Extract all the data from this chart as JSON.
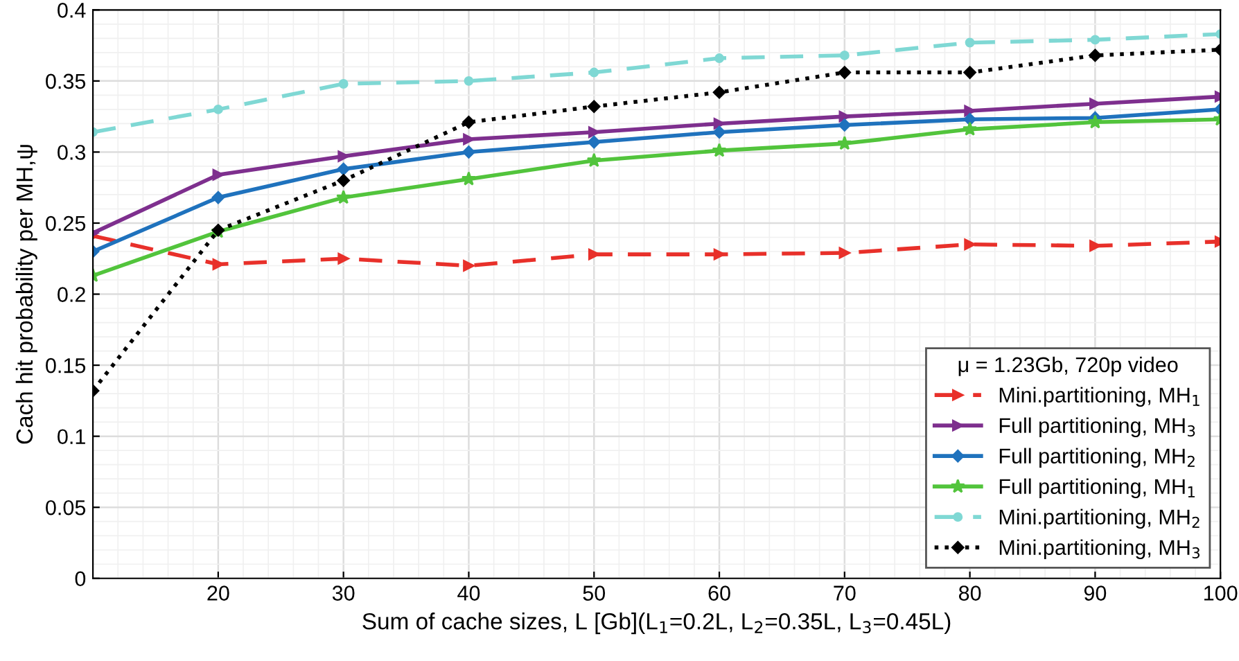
{
  "chart_data": {
    "type": "line",
    "xlabel": "Sum of cache sizes, L [Gb](L$_{1}$=0.2L, L$_{2}$=0.35L, L$_{3}$=0.45L)",
    "ylabel": "Cach hit probability per MH,ψ",
    "legend_title": "μ = 1.23Gb, 720p video",
    "x": [
      10,
      20,
      30,
      40,
      50,
      60,
      70,
      80,
      90,
      100
    ],
    "series": [
      {
        "name": "Mini.partitioning, MH$_{1}$",
        "color": "#e8302a",
        "marker": "triangle",
        "line_style": "dashed",
        "values": [
          0.241,
          0.221,
          0.225,
          0.22,
          0.228,
          0.228,
          0.229,
          0.235,
          0.234,
          0.237
        ]
      },
      {
        "name": "Full partitioning, MH$_{3}$",
        "color": "#7e2f8e",
        "marker": "triangle",
        "line_style": "solid",
        "values": [
          0.243,
          0.284,
          0.297,
          0.309,
          0.314,
          0.32,
          0.325,
          0.329,
          0.334,
          0.339
        ]
      },
      {
        "name": "Full partitioning, MH$_{2}$",
        "color": "#1f72bd",
        "marker": "diamond",
        "line_style": "solid",
        "values": [
          0.23,
          0.268,
          0.288,
          0.3,
          0.307,
          0.314,
          0.319,
          0.323,
          0.324,
          0.33
        ]
      },
      {
        "name": "Full partitioning, MH$_{1}$",
        "color": "#52c43c",
        "marker": "star",
        "line_style": "solid",
        "values": [
          0.213,
          0.244,
          0.268,
          0.281,
          0.294,
          0.301,
          0.306,
          0.316,
          0.321,
          0.323
        ]
      },
      {
        "name": "Mini.partitioning, MH$_{2}$",
        "color": "#7fd8d4",
        "marker": "circle",
        "line_style": "dashed",
        "values": [
          0.314,
          0.33,
          0.348,
          0.35,
          0.356,
          0.366,
          0.368,
          0.377,
          0.379,
          0.383
        ]
      },
      {
        "name": "Mini.partitioning, MH$_{3}$",
        "color": "#000000",
        "marker": "diamond",
        "line_style": "dotted",
        "values": [
          0.132,
          0.245,
          0.28,
          0.321,
          0.332,
          0.342,
          0.356,
          0.356,
          0.368,
          0.372
        ]
      }
    ],
    "xlim": [
      10,
      100
    ],
    "xticks": [
      20,
      30,
      40,
      50,
      60,
      70,
      80,
      90,
      100
    ],
    "ylim": [
      0,
      0.4
    ],
    "yticks": [
      0,
      0.05,
      0.1,
      0.15,
      0.2,
      0.25,
      0.3,
      0.35,
      0.4
    ],
    "grid": true,
    "legend": "bottom right"
  }
}
